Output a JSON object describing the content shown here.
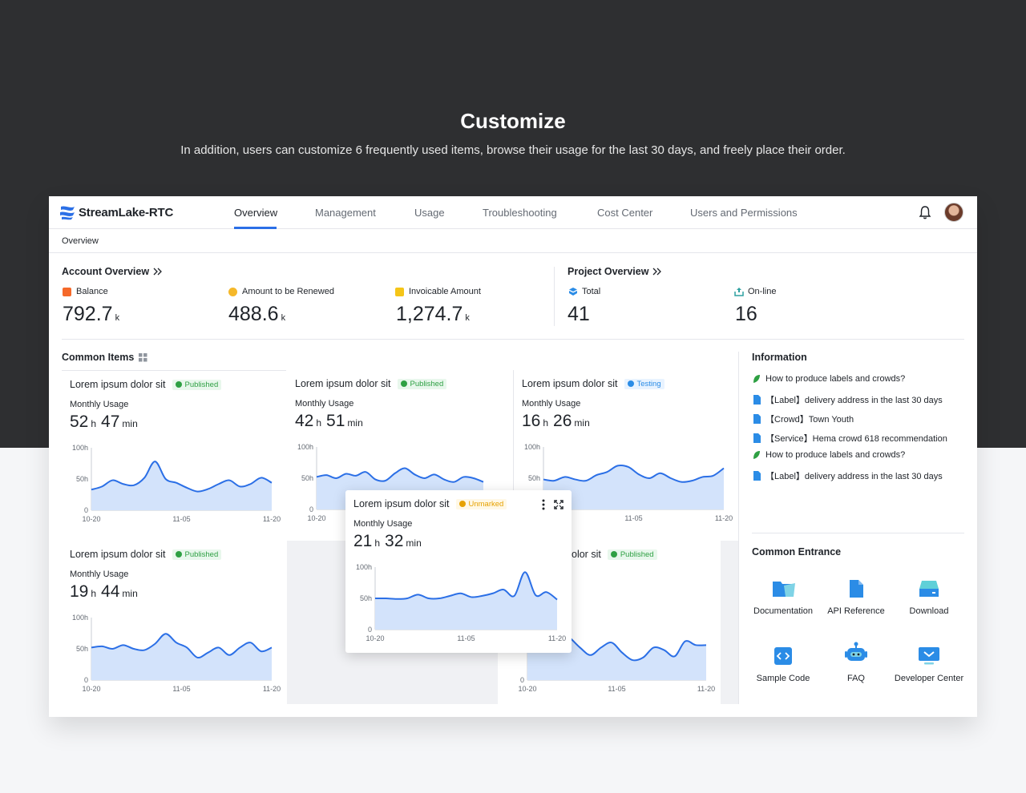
{
  "hero": {
    "title": "Customize",
    "subtitle": "In addition, users can customize 6 frequently used items, browse their usage for the last 30 days, and freely place their order."
  },
  "brand": {
    "name": "StreamLake-RTC",
    "accent": "#2b6fe6"
  },
  "nav": {
    "items": [
      "Overview",
      "Management",
      "Usage",
      "Troubleshooting",
      "Cost Center",
      "Users and Permissions"
    ],
    "active": "Overview"
  },
  "breadcrumb": "Overview",
  "account": {
    "title": "Account Overview",
    "metrics": [
      {
        "label": "Balance",
        "value": "792.7",
        "unit": "k",
        "icon_color": "#f5692a"
      },
      {
        "label": "Amount to be Renewed",
        "value": "488.6",
        "unit": "k",
        "icon_color": "#f5b82a"
      },
      {
        "label": "Invoicable Amount",
        "value": "1,274.7",
        "unit": "k",
        "icon_color": "#f5c518"
      }
    ]
  },
  "project": {
    "title": "Project Overview",
    "metrics": [
      {
        "label": "Total",
        "value": "41",
        "icon_color": "#2b8ce6"
      },
      {
        "label": "On-line",
        "value": "16",
        "icon_color": "#2ea0a0"
      }
    ]
  },
  "common_items": {
    "title": "Common Items",
    "cards": [
      {
        "title": "Lorem ipsum dolor sit",
        "status": "Published",
        "sub": "Monthly Usage",
        "h": "52",
        "min": "47"
      },
      {
        "title": "Lorem ipsum dolor sit",
        "status": "Published",
        "sub": "Monthly Usage",
        "h": "42",
        "min": "51"
      },
      {
        "title": "Lorem ipsum dolor sit",
        "status": "Testing",
        "sub": "Monthly Usage",
        "h": "16",
        "min": "26"
      },
      {
        "title": "Lorem ipsum dolor sit",
        "status": "Published",
        "sub": "Monthly Usage",
        "h": "19",
        "min": "44"
      },
      {
        "title": "Lorem ipsum dolor sit",
        "status": "Unmarked",
        "sub": "Monthly Usage",
        "h": "21",
        "min": "32"
      },
      {
        "title": "olor sit",
        "status": "Published"
      }
    ],
    "unit_h": "h",
    "unit_min": "min"
  },
  "information": {
    "title": "Information",
    "items": [
      {
        "text": "How to produce labels and crowds?",
        "icon": "leaf-icon"
      },
      {
        "text": "【Label】delivery address in the last 30 days",
        "icon": "doc-icon"
      },
      {
        "text": "【Crowd】Town Youth",
        "icon": "doc-icon"
      },
      {
        "text": "【Service】Hema crowd 618 recommendation",
        "icon": "doc-icon"
      },
      {
        "text": "How to produce labels and crowds?",
        "icon": "leaf-icon"
      },
      {
        "text": "【Label】delivery address in the last 30 days",
        "icon": "doc-icon"
      }
    ]
  },
  "entrance": {
    "title": "Common Entrance",
    "items": [
      "Documentation",
      "API Reference",
      "Download",
      "Sample Code",
      "FAQ",
      "Developer Center"
    ]
  },
  "chart_data": [
    {
      "type": "area",
      "title": "Monthly Usage 1",
      "ylabels": [
        "100h",
        "50h",
        "0"
      ],
      "ylim": [
        0,
        100
      ],
      "xlabels": [
        "10-20",
        "11-05",
        "11-20"
      ],
      "values": [
        33,
        38,
        48,
        42,
        40,
        52,
        78,
        50,
        44,
        36,
        30,
        34,
        42,
        48,
        38,
        42,
        52,
        44
      ]
    },
    {
      "type": "area",
      "title": "Monthly Usage 2",
      "ylabels": [
        "100h",
        "50h",
        "0"
      ],
      "ylim": [
        0,
        100
      ],
      "xlabels": [
        "10-20",
        "11-05",
        "11-20"
      ],
      "values": [
        52,
        55,
        50,
        57,
        54,
        60,
        48,
        46,
        58,
        66,
        56,
        50,
        56,
        48,
        44,
        52,
        50,
        44
      ]
    },
    {
      "type": "area",
      "title": "Monthly Usage 3",
      "ylabels": [
        "100h",
        "50h",
        "0"
      ],
      "ylim": [
        0,
        100
      ],
      "xlabels": [
        "10-20",
        "11-05",
        "11-20"
      ],
      "values": [
        48,
        46,
        52,
        48,
        46,
        55,
        60,
        70,
        68,
        56,
        50,
        58,
        50,
        44,
        46,
        52,
        54,
        66
      ]
    },
    {
      "type": "area",
      "title": "Monthly Usage 4",
      "ylabels": [
        "100h",
        "50h",
        "0"
      ],
      "ylim": [
        0,
        100
      ],
      "xlabels": [
        "10-20",
        "11-05",
        "11-20"
      ],
      "values": [
        52,
        54,
        50,
        56,
        50,
        48,
        58,
        74,
        60,
        52,
        36,
        44,
        52,
        40,
        52,
        60,
        46,
        52
      ]
    },
    {
      "type": "area",
      "title": "Monthly Usage 5",
      "ylabels": [
        "100h",
        "50h",
        "0"
      ],
      "ylim": [
        0,
        100
      ],
      "xlabels": [
        "10-20",
        "11-05",
        "11-20"
      ],
      "values": [
        50,
        50,
        49,
        50,
        56,
        50,
        50,
        54,
        58,
        52,
        54,
        58,
        64,
        54,
        92,
        55,
        60,
        48
      ]
    },
    {
      "type": "area",
      "title": "Monthly Usage 6",
      "ylabels": [
        "100h",
        "50h",
        "0"
      ],
      "ylim": [
        0,
        100
      ],
      "xlabels": [
        "10-20",
        "11-05",
        "11-20"
      ],
      "values": [
        46,
        50,
        62,
        78,
        68,
        52,
        40,
        52,
        60,
        44,
        32,
        36,
        52,
        48,
        38,
        62,
        56,
        56
      ]
    }
  ]
}
